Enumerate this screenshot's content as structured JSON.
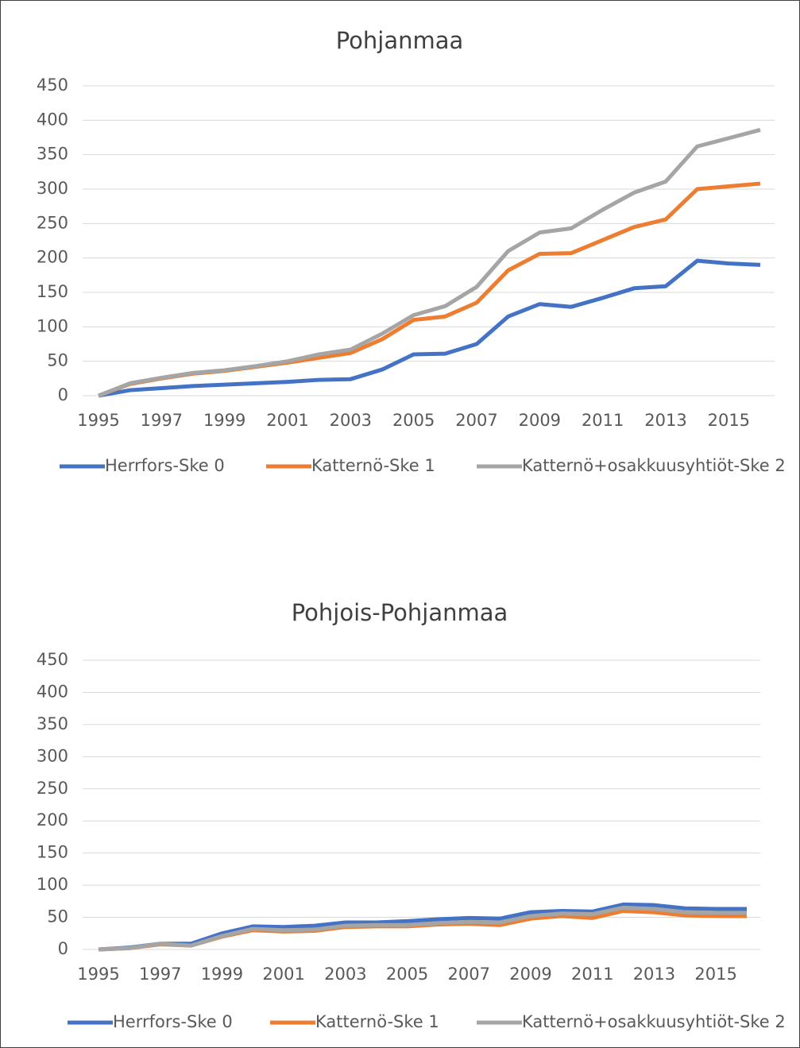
{
  "chart_data": [
    {
      "type": "line",
      "title": "Pohjanmaa",
      "x": [
        1995,
        1996,
        1997,
        1998,
        1999,
        2000,
        2001,
        2002,
        2003,
        2004,
        2005,
        2006,
        2007,
        2008,
        2009,
        2010,
        2011,
        2012,
        2013,
        2014,
        2015,
        2016
      ],
      "xlim": [
        1995,
        2016
      ],
      "xticks": [
        1995,
        1997,
        1999,
        2001,
        2003,
        2005,
        2007,
        2009,
        2011,
        2013,
        2015
      ],
      "ylim": [
        0,
        450
      ],
      "yticks": [
        0,
        50,
        100,
        150,
        200,
        250,
        300,
        350,
        400,
        450
      ],
      "grid": true,
      "legend": "bottom",
      "series": [
        {
          "name": "Herrfors-Ske 0",
          "color": "#4472c4",
          "values": [
            0,
            8,
            11,
            14,
            16,
            18,
            20,
            23,
            24,
            38,
            60,
            61,
            75,
            115,
            133,
            129,
            142,
            156,
            159,
            196,
            192,
            190
          ]
        },
        {
          "name": "Katternö-Ske 1",
          "color": "#ed7d31",
          "values": [
            0,
            17,
            25,
            32,
            36,
            42,
            48,
            55,
            62,
            82,
            110,
            115,
            135,
            182,
            206,
            207,
            226,
            245,
            256,
            300,
            304,
            308
          ]
        },
        {
          "name": "Katternö+osakkuusyhtiöt-Ske 2",
          "color": "#a5a5a5",
          "values": [
            0,
            18,
            26,
            33,
            37,
            43,
            50,
            60,
            67,
            90,
            117,
            130,
            158,
            210,
            237,
            243,
            270,
            295,
            311,
            362,
            374,
            386
          ]
        }
      ]
    },
    {
      "type": "line",
      "title": "Pohjois-Pohjanmaa",
      "x": [
        1995,
        1996,
        1997,
        1998,
        1999,
        2000,
        2001,
        2002,
        2003,
        2004,
        2005,
        2006,
        2007,
        2008,
        2009,
        2010,
        2011,
        2012,
        2013,
        2014,
        2015,
        2016
      ],
      "xlim": [
        1995,
        2016
      ],
      "xticks": [
        1995,
        1997,
        1999,
        2001,
        2003,
        2005,
        2007,
        2009,
        2011,
        2013,
        2015
      ],
      "ylim": [
        0,
        450
      ],
      "yticks": [
        0,
        50,
        100,
        150,
        200,
        250,
        300,
        350,
        400,
        450
      ],
      "grid": true,
      "legend": "bottom",
      "series": [
        {
          "name": "Herrfors-Ske 0",
          "color": "#4472c4",
          "values": [
            0,
            3,
            9,
            9,
            25,
            36,
            35,
            37,
            42,
            42,
            44,
            47,
            49,
            48,
            58,
            60,
            59,
            70,
            69,
            64,
            63,
            63
          ]
        },
        {
          "name": "Katternö-Ske 1",
          "color": "#ed7d31",
          "values": [
            0,
            2,
            8,
            6,
            20,
            30,
            28,
            29,
            35,
            36,
            36,
            39,
            40,
            38,
            48,
            52,
            49,
            60,
            58,
            53,
            52,
            52
          ]
        },
        {
          "name": "Katternö+osakkuusyhtiöt-Ske 2",
          "color": "#a5a5a5",
          "values": [
            0,
            2,
            9,
            6,
            21,
            32,
            30,
            31,
            37,
            38,
            38,
            41,
            43,
            42,
            52,
            56,
            55,
            65,
            63,
            58,
            57,
            57
          ]
        }
      ]
    }
  ]
}
